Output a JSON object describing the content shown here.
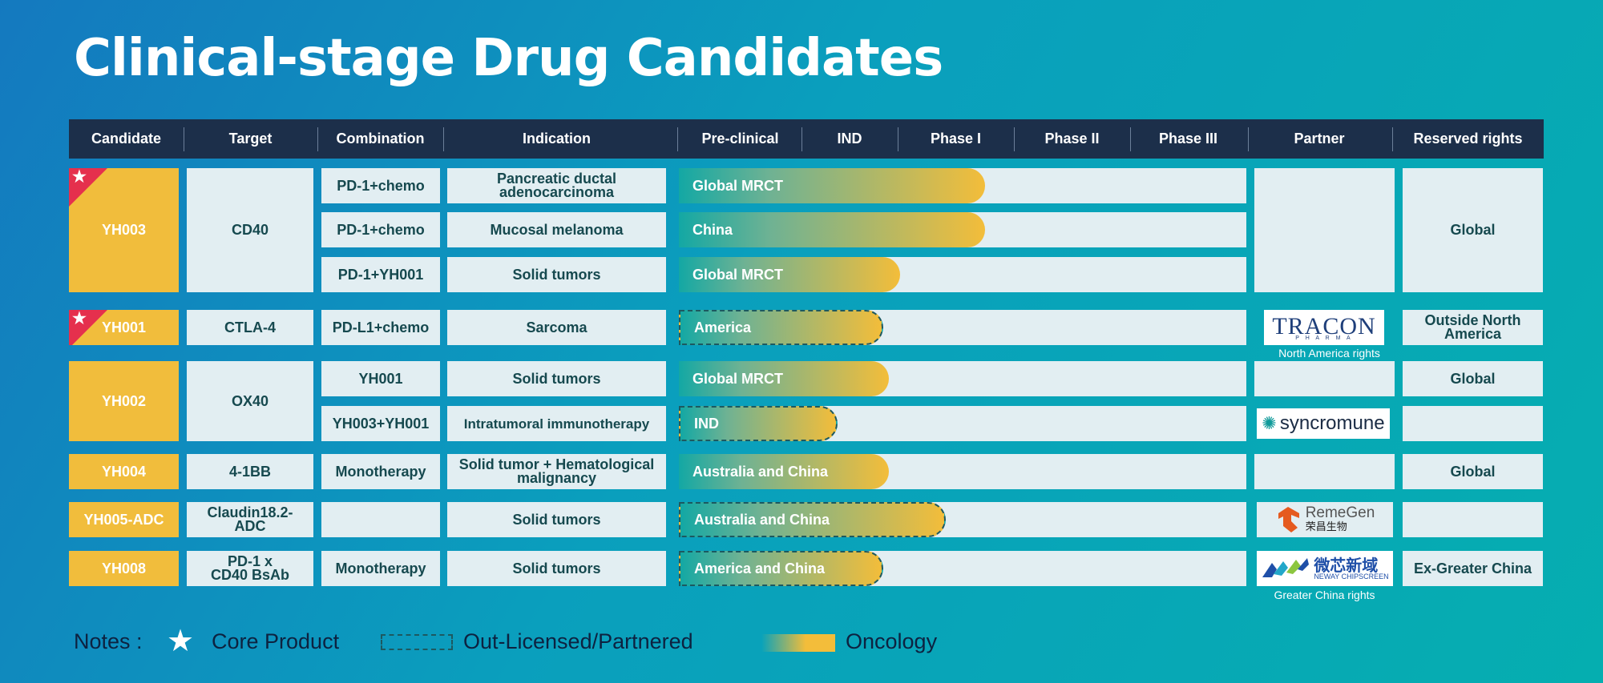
{
  "title": "Clinical-stage Drug Candidates",
  "colors": {
    "accent": "#f1bd3c",
    "header": "#1c2f4a",
    "core_marker": "#e5304d",
    "cell": "#e2eef2"
  },
  "headers": {
    "candidate": "Candidate",
    "target": "Target",
    "combination": "Combination",
    "indication": "Indication",
    "preclinical": "Pre-clinical",
    "ind": "IND",
    "phase1": "Phase I",
    "phase2": "Phase II",
    "phase3": "Phase III",
    "partner": "Partner",
    "reserved_rights": "Reserved rights"
  },
  "candidates": {
    "yh003": "YH003",
    "yh001": "YH001",
    "yh002": "YH002",
    "yh004": "YH004",
    "yh005": "YH005-ADC",
    "yh008": "YH008"
  },
  "targets": {
    "yh003": "CD40",
    "yh001": "CTLA-4",
    "yh002": "OX40",
    "yh004": "4-1BB",
    "yh005": "Claudin18.2-ADC",
    "yh008": "PD-1 x CD40 BsAb"
  },
  "rows": [
    {
      "combination": "PD-1+chemo",
      "indication": "Pancreatic ductal adenocarcinoma",
      "region": "Global MRCT",
      "progress": 0.54,
      "dashed": false
    },
    {
      "combination": "PD-1+chemo",
      "indication": "Mucosal melanoma",
      "region": "China",
      "progress": 0.54,
      "dashed": false
    },
    {
      "combination": "PD-1+YH001",
      "indication": "Solid tumors",
      "region": "Global MRCT",
      "progress": 0.39,
      "dashed": false
    },
    {
      "combination": "PD-L1+chemo",
      "indication": "Sarcoma",
      "region": "America",
      "progress": 0.36,
      "dashed": true
    },
    {
      "combination": "YH001",
      "indication": "Solid tumors",
      "region": "Global MRCT",
      "progress": 0.37,
      "dashed": false
    },
    {
      "combination": "YH003+YH001",
      "indication": "Intratumoral immunotherapy",
      "region": "IND",
      "progress": 0.28,
      "dashed": true
    },
    {
      "combination": "Monotherapy",
      "indication": "Solid tumor + Hematological malignancy",
      "region": "Australia and China",
      "progress": 0.37,
      "dashed": false
    },
    {
      "combination": "",
      "indication": "Solid tumors",
      "region": "Australia and China",
      "progress": 0.47,
      "dashed": true
    },
    {
      "combination": "Monotherapy",
      "indication": "Solid tumors",
      "region": "America and China",
      "progress": 0.36,
      "dashed": true
    }
  ],
  "partners": {
    "tracon": {
      "main": "TRACON",
      "sub": "P H A R M A",
      "caption": "North America rights"
    },
    "syncromune": {
      "name": "syncromune"
    },
    "remegen": {
      "en": "RemeGen",
      "cn": "荣昌生物"
    },
    "neway": {
      "cn": "微芯新域",
      "en": "NEWAY",
      "en2": "CHIPSCREEN",
      "caption": "Greater China rights"
    }
  },
  "rights": {
    "yh003": "Global",
    "yh001": "Outside North America",
    "yh002": "Global",
    "yh004": "Global",
    "yh008": "Ex-Greater China"
  },
  "notes": {
    "label": "Notes :",
    "core": "Core Product",
    "licensed": "Out-Licensed/Partnered",
    "oncology": "Oncology"
  }
}
